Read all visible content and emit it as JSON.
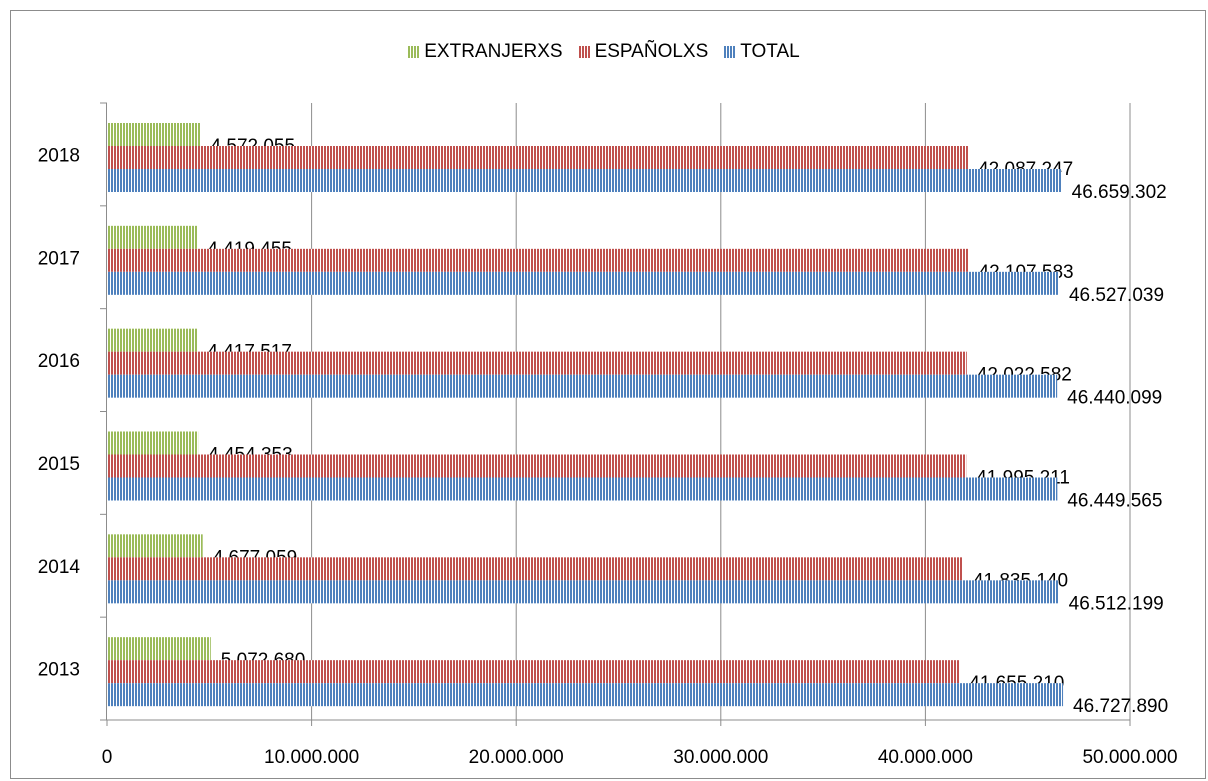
{
  "chart_data": {
    "type": "bar",
    "orientation": "horizontal",
    "categories": [
      "2013",
      "2014",
      "2015",
      "2016",
      "2017",
      "2018"
    ],
    "series": [
      {
        "name": "TOTAL",
        "color": "#4f81bd",
        "values": [
          46727890,
          46512199,
          46449565,
          46440099,
          46527039,
          46659302
        ],
        "labels": [
          "46.727.890",
          "46.512.199",
          "46.449.565",
          "46.440.099",
          "46.527.039",
          "46.659.302"
        ]
      },
      {
        "name": "ESPAÑOLXS",
        "color": "#c0504d",
        "values": [
          41655210,
          41835140,
          41995211,
          42022582,
          42107583,
          42087247
        ],
        "labels": [
          "41.655.210",
          "41.835.140",
          "41.995.211",
          "42.022.582",
          "42.107.583",
          "42.087.247"
        ]
      },
      {
        "name": "EXTRANJERXS",
        "color": "#9bbb59",
        "values": [
          5072680,
          4677059,
          4454353,
          4417517,
          4419455,
          4572055
        ],
        "labels": [
          "5.072.680",
          "4.677.059",
          "4.454.353",
          "4.417.517",
          "4.419.455",
          "4.572.055"
        ]
      }
    ],
    "legend_order": [
      "EXTRANJERXS",
      "ESPAÑOLXS",
      "TOTAL"
    ],
    "xlim": [
      0,
      50000000
    ],
    "xticks": [
      0,
      10000000,
      20000000,
      30000000,
      40000000,
      50000000
    ],
    "xtick_labels": [
      "0",
      "10.000.000",
      "20.000.000",
      "30.000.000",
      "40.000.000",
      "50.000.000"
    ],
    "grid": true,
    "legend_position": "top"
  }
}
